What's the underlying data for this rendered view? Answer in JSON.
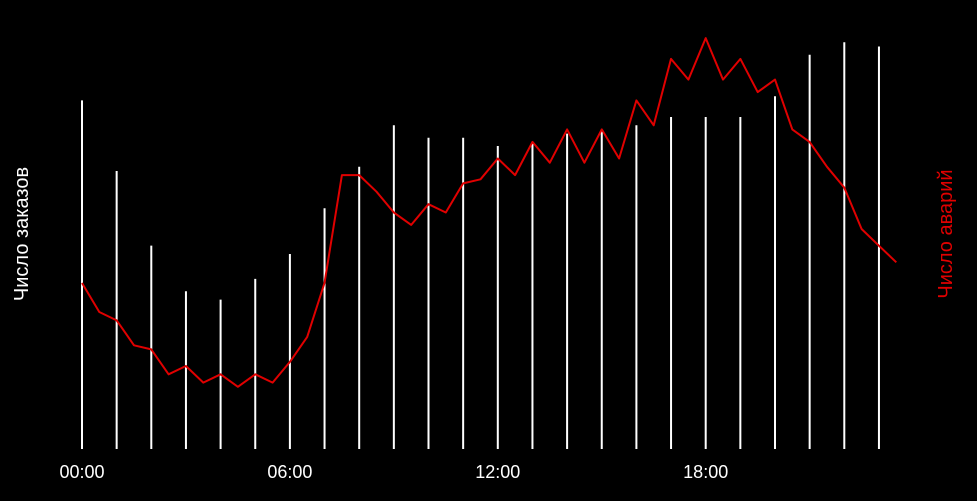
{
  "colors": {
    "background": "#000000",
    "bars": "#ffffff",
    "line": "#e00000",
    "left_label": "#ffffff",
    "right_label": "#e00000",
    "tick_label": "#ffffff"
  },
  "chart_data": {
    "type": "bar+line",
    "title": "",
    "xlabel": "",
    "ylabel_left": "Число заказов",
    "ylabel_right": "Число аварий",
    "x_tick_labels": [
      "00:00",
      "06:00",
      "12:00",
      "18:00"
    ],
    "x_tick_hours": [
      0,
      6,
      12,
      18
    ],
    "x_range_hours": [
      0,
      23.5
    ],
    "grid": false,
    "legend": "none",
    "bars": {
      "name": "Число заказов",
      "hours": [
        0,
        1,
        2,
        3,
        4,
        5,
        6,
        7,
        8,
        9,
        10,
        11,
        12,
        13,
        14,
        15,
        16,
        17,
        18,
        19,
        20,
        21,
        22,
        23
      ],
      "values": [
        0.84,
        0.67,
        0.49,
        0.38,
        0.36,
        0.41,
        0.47,
        0.58,
        0.68,
        0.78,
        0.75,
        0.75,
        0.73,
        0.74,
        0.76,
        0.77,
        0.78,
        0.8,
        0.8,
        0.8,
        0.85,
        0.95,
        0.98,
        0.97
      ],
      "ylim": [
        0,
        1
      ]
    },
    "line": {
      "name": "Число аварий",
      "hours": [
        0,
        0.5,
        1,
        1.5,
        2,
        2.5,
        3,
        3.5,
        4,
        4.5,
        5,
        5.5,
        6,
        6.5,
        7,
        7.5,
        8,
        8.5,
        9,
        9.5,
        10,
        10.5,
        11,
        11.5,
        12,
        12.5,
        13,
        13.5,
        14,
        14.5,
        15,
        15.5,
        16,
        16.5,
        17,
        17.5,
        18,
        18.5,
        19,
        19.5,
        20,
        20.5,
        21,
        21.5,
        22,
        22.5,
        23,
        23.5
      ],
      "values": [
        0.4,
        0.33,
        0.31,
        0.25,
        0.24,
        0.18,
        0.2,
        0.16,
        0.18,
        0.15,
        0.18,
        0.16,
        0.21,
        0.27,
        0.4,
        0.66,
        0.66,
        0.62,
        0.57,
        0.54,
        0.59,
        0.57,
        0.64,
        0.65,
        0.7,
        0.66,
        0.74,
        0.69,
        0.77,
        0.69,
        0.77,
        0.7,
        0.84,
        0.78,
        0.94,
        0.89,
        0.99,
        0.89,
        0.94,
        0.86,
        0.89,
        0.77,
        0.74,
        0.68,
        0.63,
        0.53,
        0.49,
        0.45
      ],
      "ylim": [
        0,
        1
      ]
    }
  }
}
